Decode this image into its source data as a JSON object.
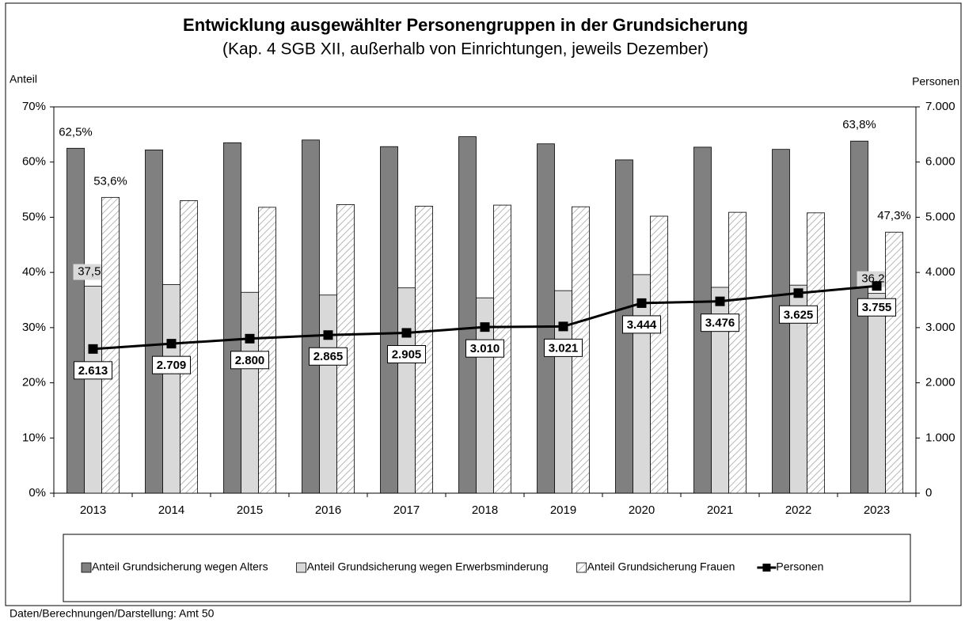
{
  "chart_data": {
    "type": "bar_line",
    "title": "Entwicklung ausgewählter Personengruppen in der Grundsicherung",
    "subtitle": "(Kap. 4 SGB XII, außerhalb von Einrichtungen, jeweils Dezember)",
    "y_label": "Anteil",
    "y2_label": "Personen",
    "footer": "Daten/Berechnungen/Darstellung:  Amt 50",
    "categories": [
      "2013",
      "2014",
      "2015",
      "2016",
      "2017",
      "2018",
      "2019",
      "2020",
      "2021",
      "2022",
      "2023"
    ],
    "ylim": [
      0,
      70
    ],
    "yticks": [
      {
        "value": 0,
        "label": "0%"
      },
      {
        "value": 10,
        "label": "10%"
      },
      {
        "value": 20,
        "label": "20%"
      },
      {
        "value": 30,
        "label": "30%"
      },
      {
        "value": 40,
        "label": "40%"
      },
      {
        "value": 50,
        "label": "50%"
      },
      {
        "value": 60,
        "label": "60%"
      },
      {
        "value": 70,
        "label": "70%"
      }
    ],
    "y2lim": [
      0,
      7000
    ],
    "y2ticks": [
      0,
      {
        "value": 1000,
        "label": "1.000"
      },
      {
        "value": 2000,
        "label": "2.000"
      },
      {
        "value": 3000,
        "label": "3.000"
      },
      {
        "value": 4000,
        "label": "4.000"
      },
      {
        "value": 5000,
        "label": "5.000"
      },
      {
        "value": 6000,
        "label": "6.000"
      },
      {
        "value": 7000,
        "label": "7.000"
      }
    ],
    "legend": "bottom",
    "series": [
      {
        "name": "Anteil Grundsicherung wegen Alters",
        "kind": "bar",
        "color": "#808080",
        "values": [
          62.5,
          62.2,
          63.5,
          64.0,
          62.8,
          64.6,
          63.3,
          60.4,
          62.7,
          62.3,
          63.8
        ],
        "value_labels": [
          "62,5%",
          null,
          null,
          null,
          null,
          null,
          null,
          null,
          null,
          null,
          "63,8%"
        ]
      },
      {
        "name": "Anteil Grundsicherung wegen Erwerbsminderung",
        "kind": "bar",
        "color": "#d9d9d9",
        "values": [
          37.5,
          37.8,
          36.4,
          35.9,
          37.2,
          35.4,
          36.7,
          39.6,
          37.3,
          37.7,
          36.2
        ],
        "value_labels": [
          "37,5%",
          null,
          null,
          null,
          null,
          null,
          null,
          null,
          null,
          null,
          "36,2%"
        ]
      },
      {
        "name": "Anteil Grundsicherung Frauen",
        "kind": "hatched-bar",
        "color": "#a0a0a0",
        "values": [
          53.6,
          53.0,
          51.8,
          52.3,
          52.0,
          52.2,
          51.9,
          50.2,
          50.9,
          50.8,
          47.3
        ],
        "value_labels": [
          "53,6%",
          null,
          null,
          null,
          null,
          null,
          null,
          null,
          null,
          null,
          "47,3%"
        ]
      },
      {
        "name": "Personen",
        "kind": "line",
        "axis": "y2",
        "color": "#000000",
        "values": [
          2613,
          2709,
          2800,
          2865,
          2905,
          3010,
          3021,
          3444,
          3476,
          3625,
          3755
        ],
        "value_labels": [
          "2.613",
          "2.709",
          "2.800",
          "2.865",
          "2.905",
          "3.010",
          "3.021",
          "3.444",
          "3.476",
          "3.625",
          "3.755"
        ]
      }
    ]
  }
}
